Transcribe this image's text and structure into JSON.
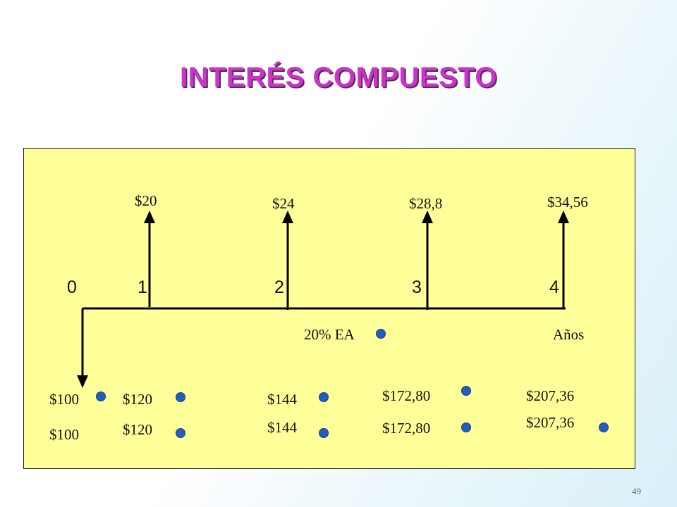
{
  "title": "INTERÉS COMPUESTO",
  "periods": [
    "0",
    "1",
    "2",
    "3",
    "4"
  ],
  "interest_labels": [
    "$20",
    "$24",
    "$28,8",
    "$34,56"
  ],
  "rate_label": "20% EA",
  "unit_label": "Años",
  "balances_row1": [
    "$100",
    "$120",
    "$144",
    "$172,80",
    "$207,36"
  ],
  "balances_row2": [
    "$100",
    "$120",
    "$144",
    "$172,80",
    "$207,36"
  ],
  "page_number": "49",
  "colors": {
    "title": "#cc33cc",
    "panel": "#ffff99",
    "dot": "#1f5fbf"
  }
}
